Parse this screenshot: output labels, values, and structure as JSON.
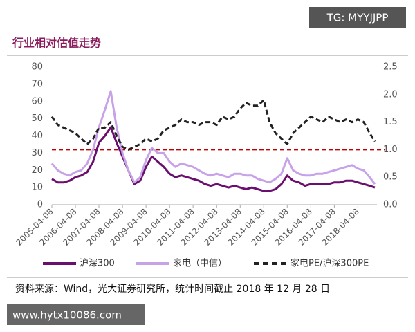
{
  "chart_data": {
    "type": "line",
    "title": "行业相对估值走势",
    "x": [
      "2005-04-08",
      "2005-07-08",
      "2005-10-08",
      "2006-01-08",
      "2006-04-08",
      "2006-07-08",
      "2006-10-08",
      "2007-01-08",
      "2007-04-08",
      "2007-07-08",
      "2007-10-08",
      "2008-01-08",
      "2008-04-08",
      "2008-07-08",
      "2008-10-08",
      "2009-01-08",
      "2009-04-08",
      "2009-07-08",
      "2009-10-08",
      "2010-01-08",
      "2010-04-08",
      "2010-07-08",
      "2010-10-08",
      "2011-01-08",
      "2011-04-08",
      "2011-07-08",
      "2011-10-08",
      "2012-01-08",
      "2012-04-08",
      "2012-07-08",
      "2012-10-08",
      "2013-01-08",
      "2013-04-08",
      "2013-07-08",
      "2013-10-08",
      "2014-01-08",
      "2014-04-08",
      "2014-07-08",
      "2014-10-08",
      "2015-01-08",
      "2015-04-08",
      "2015-07-08",
      "2015-10-08",
      "2016-01-08",
      "2016-04-08",
      "2016-07-08",
      "2016-10-08",
      "2017-01-08",
      "2017-04-08",
      "2017-07-08",
      "2017-10-08",
      "2018-01-08",
      "2018-04-08",
      "2018-07-08",
      "2018-10-08",
      "2018-12-28"
    ],
    "series": [
      {
        "name": "沪深300",
        "color": "#6b0f6f",
        "dash": false,
        "values": [
          15,
          13,
          13,
          14,
          16,
          17,
          19,
          25,
          36,
          40,
          45,
          36,
          28,
          20,
          12,
          14,
          22,
          28,
          25,
          22,
          18,
          16,
          17,
          16,
          15,
          14,
          12,
          11,
          12,
          11,
          10,
          11,
          10,
          9,
          10,
          9,
          8,
          8,
          9,
          12,
          17,
          14,
          13,
          11,
          12,
          12,
          12,
          12,
          13,
          13,
          14,
          14,
          13,
          12,
          11,
          10
        ]
      },
      {
        "name": "家电（中信）",
        "color": "#c7a2e8",
        "dash": false,
        "values": [
          24,
          20,
          18,
          17,
          19,
          20,
          24,
          32,
          45,
          55,
          66,
          45,
          30,
          20,
          13,
          16,
          26,
          33,
          30,
          30,
          25,
          22,
          24,
          23,
          22,
          20,
          18,
          17,
          18,
          17,
          16,
          18,
          18,
          17,
          17,
          15,
          14,
          13,
          15,
          18,
          27,
          20,
          18,
          17,
          17,
          18,
          18,
          19,
          20,
          21,
          22,
          23,
          21,
          20,
          16,
          12
        ]
      },
      {
        "name": "家电PE/沪深300PE",
        "color": "#222222",
        "dash": true,
        "axis": "y2",
        "values": [
          1.6,
          1.45,
          1.4,
          1.35,
          1.3,
          1.2,
          1.1,
          1.2,
          1.4,
          1.4,
          1.5,
          1.25,
          1.05,
          1.0,
          1.05,
          1.1,
          1.2,
          1.15,
          1.2,
          1.35,
          1.4,
          1.45,
          1.55,
          1.5,
          1.5,
          1.45,
          1.5,
          1.5,
          1.45,
          1.6,
          1.55,
          1.6,
          1.75,
          1.85,
          1.8,
          1.8,
          1.9,
          1.5,
          1.3,
          1.2,
          1.1,
          1.3,
          1.4,
          1.5,
          1.6,
          1.55,
          1.5,
          1.6,
          1.55,
          1.5,
          1.55,
          1.5,
          1.55,
          1.5,
          1.3,
          1.15
        ]
      }
    ],
    "xlim": [
      "2005-04-08",
      "2018-12-28"
    ],
    "xticks": [
      "2005-04-08",
      "2006-04-08",
      "2007-04-08",
      "2008-04-08",
      "2009-04-08",
      "2010-04-08",
      "2011-04-08",
      "2012-04-08",
      "2013-04-08",
      "2014-04-08",
      "2015-04-08",
      "2016-04-08",
      "2017-04-08",
      "2018-04-08"
    ],
    "ylim": [
      0,
      80
    ],
    "yticks": [
      0,
      10,
      20,
      30,
      40,
      50,
      60,
      70,
      80
    ],
    "y2lim": [
      0,
      2.5
    ],
    "y2ticks": [
      {
        "value": 0,
        "label": "0.0"
      },
      0.5,
      {
        "value": 1,
        "label": "1.0"
      },
      1.5,
      {
        "value": 2,
        "label": "2.0"
      },
      2.5
    ],
    "reference_line": {
      "value": 1,
      "axis": "y2",
      "color": "#c00000"
    },
    "legend": "bottom",
    "grid": false
  },
  "source": "资料来源：Wind，光大证券研究所，统计时间截止 2018 年 12 月 28 日",
  "watermarks": [
    "TG: MYYJJPP",
    "www.hytx10086.com"
  ]
}
